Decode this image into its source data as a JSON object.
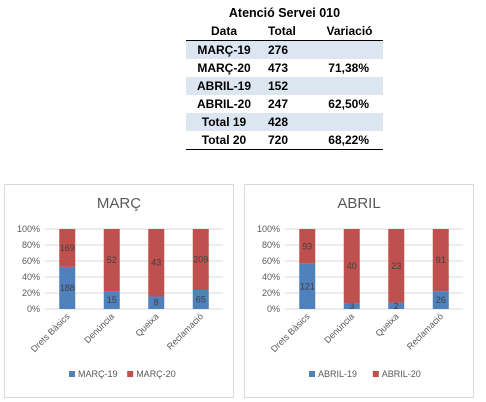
{
  "table": {
    "title": "Atenció Servei 010",
    "headers": [
      "Data",
      "Total",
      "Variació"
    ],
    "rows": [
      {
        "data": "MARÇ-19",
        "total": "276",
        "variacio": ""
      },
      {
        "data": "MARÇ-20",
        "total": "473",
        "variacio": "71,38%"
      },
      {
        "data": "ABRIL-19",
        "total": "152",
        "variacio": ""
      },
      {
        "data": "ABRIL-20",
        "total": "247",
        "variacio": "62,50%"
      },
      {
        "data": "Total 19",
        "total": "428",
        "variacio": ""
      },
      {
        "data": "Total 20",
        "total": "720",
        "variacio": "68,22%"
      }
    ]
  },
  "colors": {
    "series_a": "#4f81bd",
    "series_b": "#c0504d",
    "grid": "#d9d9d9",
    "shade": "#dce6f1"
  },
  "chart_data": [
    {
      "type": "bar",
      "stacked": "100%",
      "title": "MARÇ",
      "categories": [
        "Drets Bàsics",
        "Denúncia",
        "Queixa",
        "Reclamació"
      ],
      "yticks": [
        "0%",
        "20%",
        "40%",
        "60%",
        "80%",
        "100%"
      ],
      "ylim": [
        0,
        100
      ],
      "grid": true,
      "legend": "bottom",
      "series": [
        {
          "name": "MARÇ-19",
          "values": [
            188,
            15,
            8,
            65
          ],
          "color": "#4f81bd"
        },
        {
          "name": "MARÇ-20",
          "values": [
            169,
            52,
            43,
            209
          ],
          "color": "#c0504d"
        }
      ]
    },
    {
      "type": "bar",
      "stacked": "100%",
      "title": "ABRIL",
      "categories": [
        "Drets Bàsics",
        "Denúncia",
        "Queixa",
        "Reclamació"
      ],
      "yticks": [
        "0%",
        "20%",
        "40%",
        "60%",
        "80%",
        "100%"
      ],
      "ylim": [
        0,
        100
      ],
      "grid": true,
      "legend": "bottom",
      "series": [
        {
          "name": "ABRIL-19",
          "values": [
            121,
            3,
            2,
            26
          ],
          "color": "#4f81bd"
        },
        {
          "name": "ABRIL-20",
          "values": [
            93,
            40,
            23,
            91
          ],
          "color": "#c0504d"
        }
      ]
    }
  ]
}
